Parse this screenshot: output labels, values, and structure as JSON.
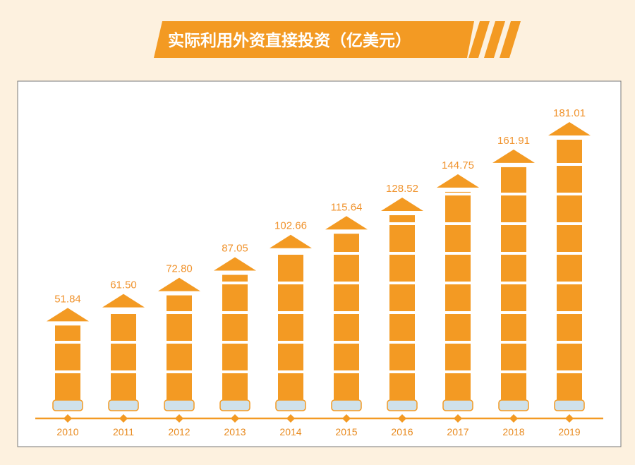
{
  "header": {
    "title": "实际利用外资直接投资（亿美元）"
  },
  "colors": {
    "accent": "#f39a23",
    "background": "#fdf1df",
    "panel": "#ffffff",
    "label": "#f0932d",
    "base_block": "#cfe1ea"
  },
  "chart_data": {
    "type": "bar",
    "title": "实际利用外资直接投资（亿美元）",
    "xlabel": "",
    "ylabel": "",
    "categories": [
      "2010",
      "2011",
      "2012",
      "2013",
      "2014",
      "2015",
      "2016",
      "2017",
      "2018",
      "2019"
    ],
    "values": [
      51.84,
      61.5,
      72.8,
      87.05,
      102.66,
      115.64,
      128.52,
      144.75,
      161.91,
      181.01
    ],
    "value_labels": [
      "51.84",
      "61.50",
      "72.80",
      "87.05",
      "102.66",
      "115.64",
      "128.52",
      "144.75",
      "161.91",
      "181.01"
    ],
    "ylim": [
      0,
      181.01
    ],
    "grid": false,
    "legend": "none"
  }
}
